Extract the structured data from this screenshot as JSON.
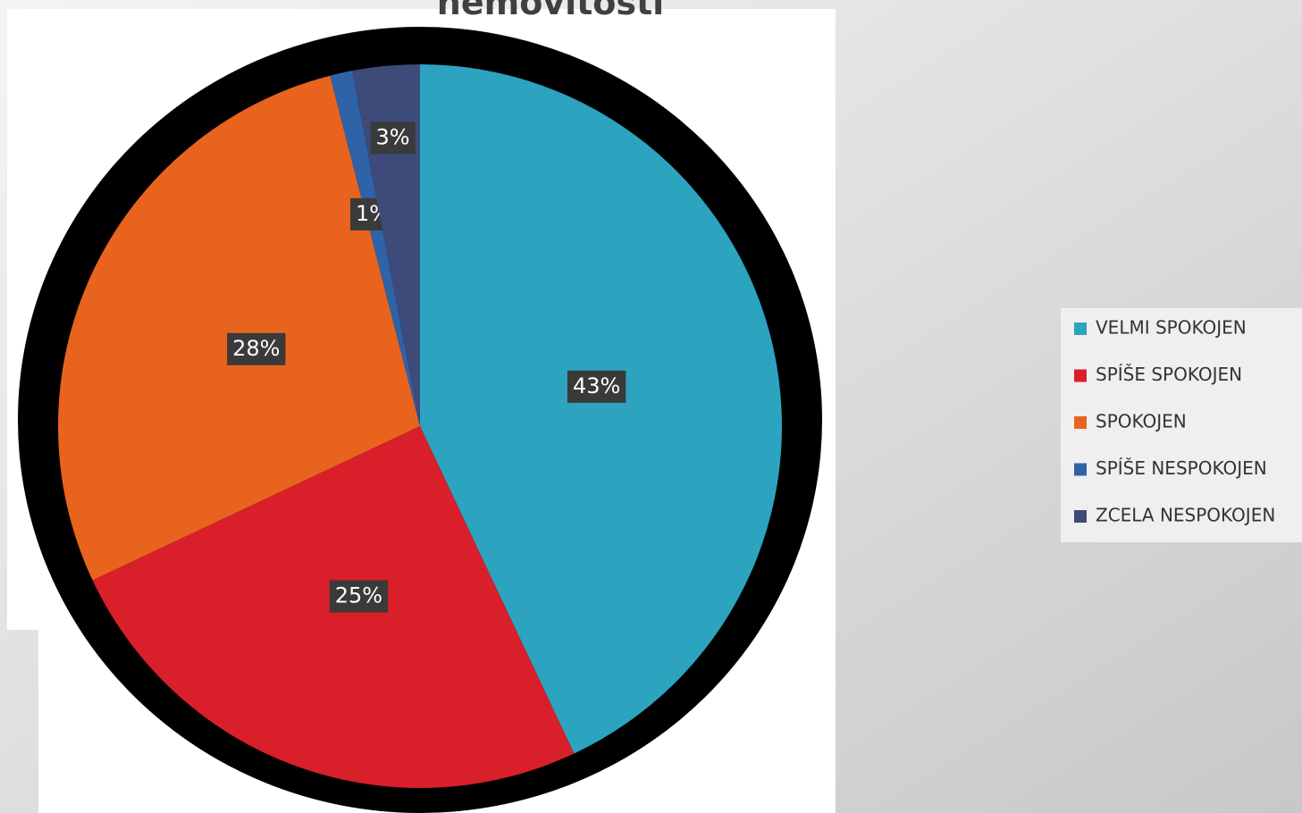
{
  "chart_data": {
    "type": "pie",
    "title": "nemovitosti",
    "categories": [
      "VELMI SPOKOJEN",
      "SPÍŠE SPOKOJEN",
      "SPOKOJEN",
      "SPÍŠE NESPOKOJEN",
      "ZCELA NESPOKOJEN"
    ],
    "values": [
      43,
      25,
      28,
      1,
      3
    ],
    "value_labels": [
      "43%",
      "25%",
      "28%",
      "1%",
      "3%"
    ],
    "colors": [
      "#2ca3bf",
      "#d91f2a",
      "#e8641e",
      "#2e63a8",
      "#3d4a7a"
    ],
    "legend": "right"
  }
}
